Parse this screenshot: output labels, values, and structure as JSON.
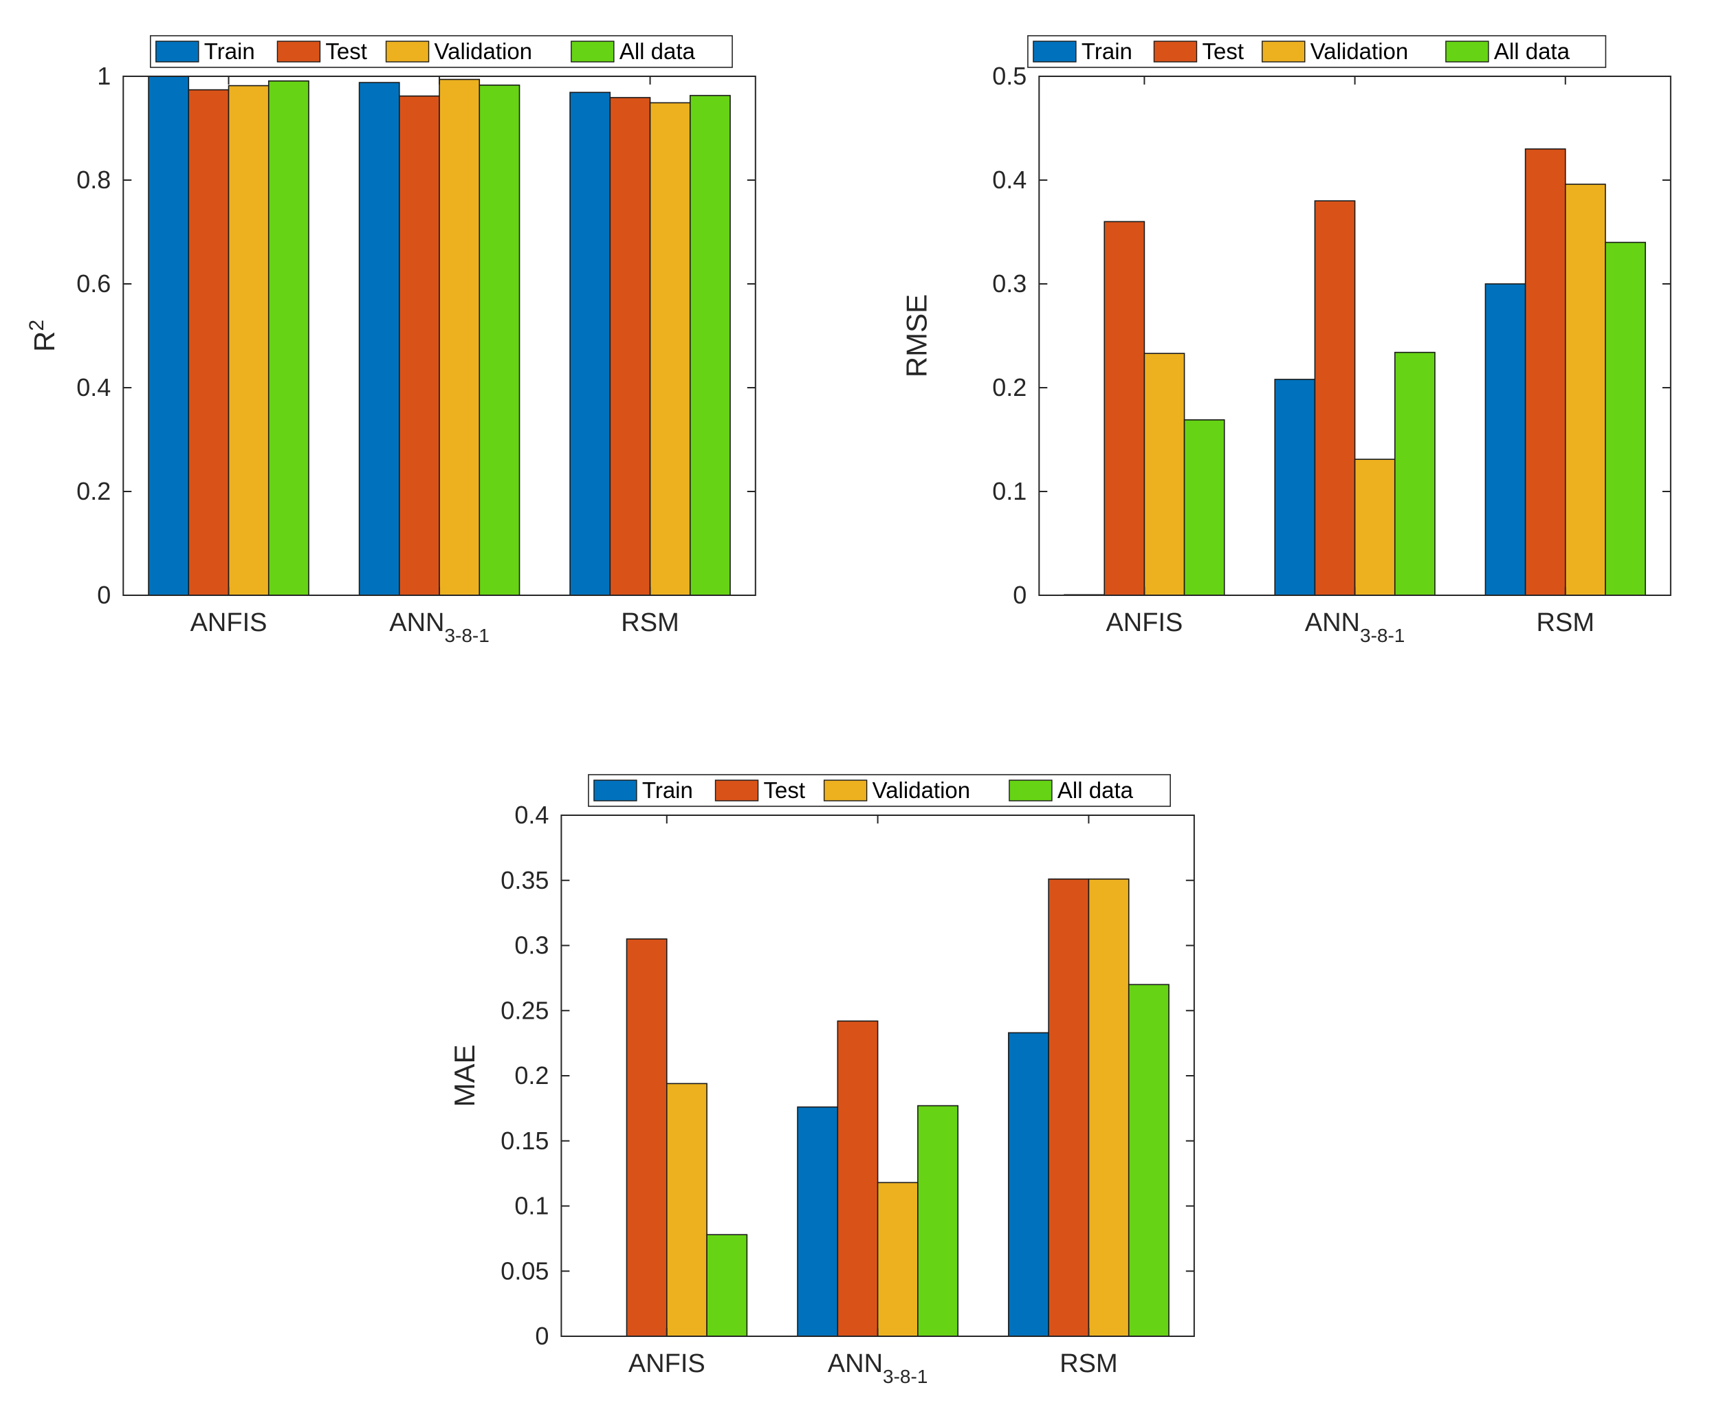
{
  "colors": {
    "Train": "#0072BD",
    "Test": "#D95319",
    "Validation": "#EDB120",
    "All data": "#66D414"
  },
  "chart_data": [
    {
      "type": "bar",
      "id": "r2",
      "title": "",
      "xlabel": "",
      "ylabel": "R",
      "ylabel_superscript": "2",
      "categories": [
        {
          "main": "ANFIS",
          "sub": ""
        },
        {
          "main": "ANN",
          "sub": "3-8-1"
        },
        {
          "main": "RSM",
          "sub": ""
        }
      ],
      "series": [
        {
          "name": "Train",
          "values": [
            1.0,
            0.988,
            0.969
          ]
        },
        {
          "name": "Test",
          "values": [
            0.974,
            0.962,
            0.959
          ]
        },
        {
          "name": "Validation",
          "values": [
            0.982,
            0.994,
            0.949
          ]
        },
        {
          "name": "All data",
          "values": [
            0.991,
            0.983,
            0.963
          ]
        }
      ],
      "ylim": [
        0,
        1
      ],
      "yticks": [
        0,
        0.2,
        0.4,
        0.6,
        0.8,
        1
      ],
      "ytick_labels": [
        "0",
        "0.2",
        "0.4",
        "0.6",
        "0.8",
        "1"
      ],
      "grid": false,
      "legend": "top-outside"
    },
    {
      "type": "bar",
      "id": "rmse",
      "title": "",
      "xlabel": "",
      "ylabel": "RMSE",
      "ylabel_superscript": "",
      "categories": [
        {
          "main": "ANFIS",
          "sub": ""
        },
        {
          "main": "ANN",
          "sub": "3-8-1"
        },
        {
          "main": "RSM",
          "sub": ""
        }
      ],
      "series": [
        {
          "name": "Train",
          "values": [
            0.0005,
            0.208,
            0.3
          ]
        },
        {
          "name": "Test",
          "values": [
            0.36,
            0.38,
            0.43
          ]
        },
        {
          "name": "Validation",
          "values": [
            0.233,
            0.131,
            0.396
          ]
        },
        {
          "name": "All data",
          "values": [
            0.169,
            0.234,
            0.34
          ]
        }
      ],
      "ylim": [
        0,
        0.5
      ],
      "yticks": [
        0,
        0.1,
        0.2,
        0.3,
        0.4,
        0.5
      ],
      "ytick_labels": [
        "0",
        "0.1",
        "0.2",
        "0.3",
        "0.4",
        "0.5"
      ],
      "grid": false,
      "legend": "top-outside"
    },
    {
      "type": "bar",
      "id": "mae",
      "title": "",
      "xlabel": "",
      "ylabel": "MAE",
      "ylabel_superscript": "",
      "categories": [
        {
          "main": "ANFIS",
          "sub": ""
        },
        {
          "main": "ANN",
          "sub": "3-8-1"
        },
        {
          "main": "RSM",
          "sub": ""
        }
      ],
      "series": [
        {
          "name": "Train",
          "values": [
            0.0,
            0.176,
            0.233
          ]
        },
        {
          "name": "Test",
          "values": [
            0.305,
            0.242,
            0.351
          ]
        },
        {
          "name": "Validation",
          "values": [
            0.194,
            0.118,
            0.351
          ]
        },
        {
          "name": "All data",
          "values": [
            0.078,
            0.177,
            0.27
          ]
        }
      ],
      "ylim": [
        0,
        0.4
      ],
      "yticks": [
        0,
        0.05,
        0.1,
        0.15,
        0.2,
        0.25,
        0.3,
        0.35,
        0.4
      ],
      "ytick_labels": [
        "0",
        "0.05",
        "0.1",
        "0.15",
        "0.2",
        "0.25",
        "0.3",
        "0.35",
        "0.4"
      ],
      "grid": false,
      "legend": "top-outside"
    }
  ]
}
